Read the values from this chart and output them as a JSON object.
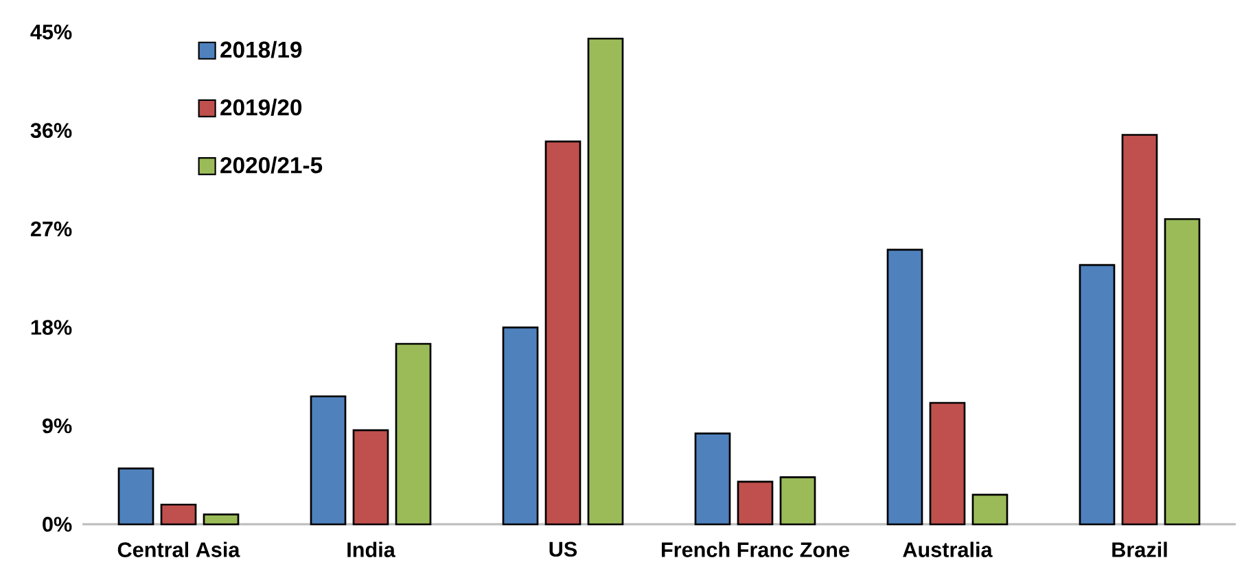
{
  "chart_data": {
    "type": "bar",
    "categories": [
      "Central Asia",
      "India",
      "US",
      "French Franc Zone",
      "Australia",
      "Brazil"
    ],
    "series": [
      {
        "name": "2018/19",
        "color": "#4f81bd",
        "values": [
          5.1,
          11.7,
          18.0,
          8.3,
          25.1,
          23.7
        ]
      },
      {
        "name": "2019/20",
        "color": "#c0504d",
        "values": [
          1.8,
          8.6,
          35.0,
          3.9,
          11.1,
          35.6
        ]
      },
      {
        "name": "2020/21-5",
        "color": "#9bbb59",
        "values": [
          0.9,
          16.5,
          44.4,
          4.3,
          2.7,
          27.9
        ]
      }
    ],
    "ylim": [
      0,
      45
    ],
    "yticks": [
      {
        "value": 0,
        "label": "0%"
      },
      {
        "value": 9,
        "label": "9%"
      },
      {
        "value": 18,
        "label": "18%"
      },
      {
        "value": 27,
        "label": "27%"
      },
      {
        "value": 36,
        "label": "36%"
      },
      {
        "value": 45,
        "label": "45%"
      }
    ],
    "grid": false,
    "legend": "top left"
  }
}
